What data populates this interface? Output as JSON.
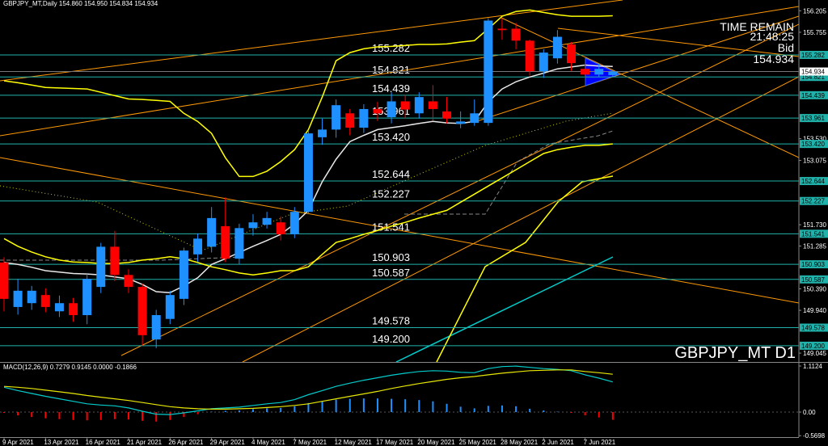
{
  "chart_data": {
    "type": "candlestick",
    "info": "GBPJPY_MT,Daily  154.860 154.950 154.834 154.934",
    "symbol_label": "GBPJPY_MT D1",
    "timer": {
      "label": "TIME REMAIN",
      "value": "21:48:25"
    },
    "bid": {
      "label": "Bid",
      "price": {
        "value": 154.934,
        "label": "154.934"
      }
    },
    "up_color": "#1e90ff",
    "down_color": "#ff0000",
    "level_color": "#20b2aa",
    "ylim": [
      148.86,
      156.43
    ],
    "yticks": [
      156.205,
      155.755,
      {
        "value": 153.53,
        "label": "153.530"
      },
      153.075,
      {
        "value": 151.73,
        "label": "151.730"
      },
      151.285,
      {
        "value": 150.39,
        "label": "150.390"
      },
      {
        "value": 149.94,
        "label": "149.940"
      },
      149.045
    ],
    "levels": [
      155.282,
      154.821,
      154.439,
      153.961,
      {
        "value": 153.42,
        "label": "153.420"
      },
      152.644,
      152.227,
      151.541,
      150.903,
      150.587,
      149.578,
      {
        "value": 149.2,
        "label": "149.200"
      }
    ],
    "categories": [
      "9 Apr 2021",
      null,
      null,
      "13 Apr 2021",
      null,
      null,
      "16 Apr 2021",
      null,
      null,
      "21 Apr 2021",
      null,
      null,
      "26 Apr 2021",
      null,
      null,
      "29 Apr 2021",
      null,
      null,
      "4 May 2021",
      null,
      null,
      "7 May 2021",
      null,
      null,
      "12 May 2021",
      null,
      null,
      "17 May 2021",
      null,
      null,
      "20 May 2021",
      null,
      null,
      "25 May 2021",
      null,
      null,
      "28 May 2021",
      null,
      null,
      "2 Jun 2021",
      null,
      null,
      "7 Jun 2021",
      null,
      null
    ],
    "open": [
      150.94,
      150.01,
      150.09,
      150.26,
      149.92,
      150.09,
      149.84,
      150.43,
      151.27,
      150.68,
      150.43,
      149.33,
      149.76,
      150.18,
      151.11,
      151.27,
      151.7,
      151.02,
      151.66,
      151.73,
      151.78,
      151.53,
      152.0,
      153.56,
      153.72,
      154.06,
      153.76,
      154.15,
      153.98,
      154.31,
      154.06,
      154.31,
      154.1,
      153.84,
      153.86,
      153.86,
      155.83,
      155.83,
      155.58,
      154.94,
      155.21,
      155.5,
      154.99,
      154.87,
      154.86
    ],
    "high": [
      151.05,
      150.6,
      150.45,
      150.4,
      150.25,
      150.2,
      150.7,
      151.35,
      151.6,
      150.8,
      150.5,
      149.95,
      150.35,
      151.25,
      151.55,
      152.1,
      152.3,
      151.75,
      151.95,
      152.0,
      151.9,
      152.1,
      153.7,
      153.95,
      154.35,
      154.15,
      154.25,
      154.3,
      154.5,
      154.45,
      154.5,
      154.65,
      154.4,
      154.1,
      154.35,
      156.05,
      156.05,
      155.95,
      155.6,
      155.4,
      155.8,
      155.55,
      155.1,
      155.1,
      154.95
    ],
    "low": [
      149.92,
      149.85,
      149.95,
      149.9,
      149.8,
      149.7,
      149.65,
      150.3,
      150.55,
      150.3,
      149.2,
      149.15,
      149.65,
      150.05,
      150.95,
      151.15,
      150.95,
      150.9,
      151.5,
      151.65,
      151.4,
      151.45,
      151.95,
      153.4,
      153.55,
      153.6,
      153.65,
      153.9,
      153.85,
      153.95,
      153.95,
      153.9,
      153.85,
      153.75,
      153.8,
      153.8,
      155.6,
      155.4,
      154.85,
      154.8,
      155.1,
      154.95,
      154.8,
      154.82,
      154.834
    ],
    "close": [
      150.18,
      150.35,
      150.35,
      150.01,
      150.09,
      149.84,
      150.6,
      151.27,
      150.68,
      150.43,
      149.42,
      149.84,
      150.26,
      151.19,
      151.44,
      151.87,
      151.02,
      151.66,
      151.78,
      151.87,
      151.53,
      152.0,
      153.64,
      153.72,
      154.23,
      153.76,
      154.15,
      154.06,
      154.31,
      154.14,
      154.4,
      154.15,
      153.95,
      153.89,
      154.06,
      156.0,
      155.8,
      155.58,
      154.94,
      155.33,
      155.66,
      155.11,
      154.87,
      154.99,
      154.934
    ],
    "overlays": [
      {
        "color": "#ffff00",
        "values": [
          154.74,
          154.7,
          154.65,
          154.6,
          154.59,
          154.58,
          154.57,
          154.5,
          154.43,
          154.36,
          154.35,
          154.33,
          154.31,
          154.06,
          153.89,
          153.64,
          153.13,
          152.74,
          152.74,
          152.85,
          153.05,
          153.3,
          153.72,
          154.4,
          155.16,
          155.33,
          155.41,
          155.45,
          155.46,
          155.48,
          155.5,
          155.5,
          155.51,
          155.55,
          155.58,
          155.83,
          156.09,
          156.19,
          156.22,
          156.17,
          156.12,
          156.09,
          156.09,
          156.09,
          156.1
        ]
      },
      {
        "color": "#e8e8e8",
        "values": [
          150.94,
          150.9,
          150.84,
          150.77,
          150.74,
          150.71,
          150.7,
          150.68,
          150.64,
          150.6,
          150.48,
          150.33,
          150.31,
          150.45,
          150.62,
          150.9,
          151.02,
          151.15,
          151.28,
          151.4,
          151.53,
          151.75,
          152.03,
          152.63,
          153.1,
          153.47,
          153.6,
          153.72,
          153.76,
          153.8,
          153.85,
          153.89,
          153.86,
          153.85,
          153.89,
          154.3,
          154.57,
          154.72,
          154.82,
          154.9,
          154.99,
          155.03,
          155.07,
          155.05,
          155.04
        ]
      },
      {
        "color": "#ffff00",
        "values": [
          151.44,
          151.28,
          151.16,
          151.06,
          150.99,
          150.95,
          150.94,
          150.92,
          150.92,
          150.94,
          150.99,
          151.02,
          151.06,
          151.02,
          150.94,
          150.85,
          150.79,
          150.72,
          150.68,
          150.72,
          150.77,
          150.77,
          150.85,
          151.11,
          151.36,
          151.44,
          151.53,
          151.61,
          151.7,
          151.78,
          151.87,
          151.95,
          152.03,
          152.2,
          152.37,
          152.54,
          152.71,
          152.88,
          153.05,
          153.22,
          153.3,
          153.35,
          153.39,
          153.39,
          153.42
        ]
      }
    ],
    "macd": {
      "title": "MACD(12,26,9) 0.7279 0.9145 0.0000 -0.1866",
      "ylim": [
        -0.605,
        1.191
      ],
      "yticks": [
        1.1124,
        {
          "value": 0,
          "label": "0.00"
        },
        -0.5698
      ],
      "main_color": "#00cccc",
      "signal_color": "#e6e600",
      "main": [
        0.6,
        0.52,
        0.45,
        0.38,
        0.32,
        0.26,
        0.2,
        0.17,
        0.15,
        0.1,
        0.02,
        -0.05,
        -0.06,
        -0.02,
        0.03,
        0.08,
        0.1,
        0.12,
        0.16,
        0.2,
        0.23,
        0.3,
        0.42,
        0.52,
        0.62,
        0.7,
        0.77,
        0.83,
        0.89,
        0.94,
        0.98,
        1.0,
        0.99,
        0.96,
        0.95,
        1.05,
        1.1,
        1.11,
        1.08,
        1.05,
        1.03,
        1.0,
        0.9,
        0.82,
        0.7279
      ],
      "signal": [
        0.62,
        0.6,
        0.57,
        0.53,
        0.49,
        0.45,
        0.4,
        0.36,
        0.32,
        0.28,
        0.23,
        0.18,
        0.13,
        0.1,
        0.08,
        0.07,
        0.07,
        0.08,
        0.09,
        0.11,
        0.13,
        0.16,
        0.2,
        0.26,
        0.32,
        0.38,
        0.44,
        0.5,
        0.57,
        0.63,
        0.69,
        0.74,
        0.79,
        0.83,
        0.86,
        0.9,
        0.94,
        0.97,
        1.0,
        1.01,
        1.02,
        1.02,
        0.98,
        0.95,
        0.9145
      ],
      "histogram": [
        -0.02,
        -0.08,
        -0.12,
        -0.15,
        -0.17,
        -0.19,
        -0.2,
        -0.19,
        -0.17,
        -0.18,
        -0.21,
        -0.23,
        -0.19,
        -0.12,
        -0.05,
        0.01,
        0.03,
        0.04,
        0.07,
        0.09,
        0.1,
        0.14,
        0.22,
        0.26,
        0.3,
        0.32,
        0.33,
        0.33,
        0.32,
        0.31,
        0.29,
        0.26,
        0.2,
        0.13,
        0.09,
        0.15,
        0.16,
        0.14,
        0.08,
        0.04,
        0.01,
        -0.02,
        -0.08,
        -0.13,
        -0.1866
      ]
    }
  }
}
